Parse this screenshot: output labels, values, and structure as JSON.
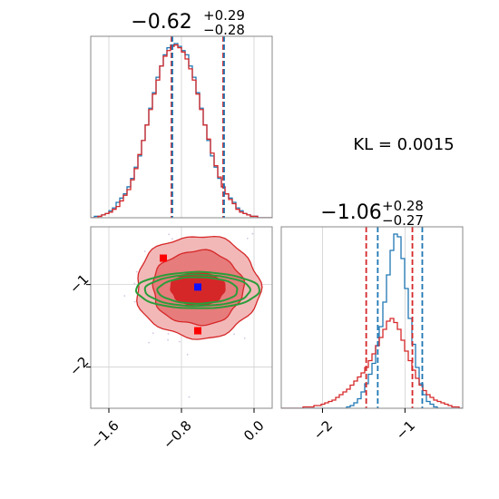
{
  "chart_data": [
    {
      "type": "histogram",
      "panel": "marginal-x",
      "title_center": "−0.62",
      "title_plus": "+0.29",
      "title_minus": "−0.28",
      "xlim": [
        -1.8,
        0.2
      ],
      "bins_start": -1.8,
      "bin_width": 0.04,
      "series": [
        {
          "color": "#1f77b4",
          "counts": [
            0,
            1,
            1,
            2,
            3,
            5,
            7,
            11,
            14,
            17,
            22,
            28,
            36,
            44,
            55,
            66,
            78,
            89,
            100,
            108,
            116,
            121,
            123,
            124,
            122,
            119,
            116,
            108,
            100,
            89,
            78,
            66,
            55,
            44,
            36,
            28,
            22,
            17,
            14,
            11,
            7,
            5,
            3,
            2,
            1,
            1,
            0,
            0,
            0,
            0
          ]
        },
        {
          "color": "#d62728",
          "counts": [
            0,
            0,
            1,
            2,
            3,
            4,
            6,
            8,
            12,
            16,
            20,
            27,
            35,
            45,
            55,
            66,
            77,
            88,
            98,
            108,
            115,
            119,
            122,
            123,
            121,
            118,
            113,
            106,
            98,
            88,
            77,
            66,
            56,
            46,
            37,
            29,
            22,
            17,
            13,
            10,
            6,
            4,
            3,
            2,
            1,
            1,
            0,
            0,
            0,
            0
          ]
        }
      ],
      "quantile_lines": {
        "blue": [
          -0.9,
          -0.33
        ],
        "red": [
          -0.91,
          -0.34
        ]
      }
    },
    {
      "type": "contour",
      "panel": "joint",
      "xlim": [
        -1.8,
        0.2
      ],
      "ylim": [
        -2.5,
        -0.3
      ],
      "x_ticks": [
        "−1.6",
        "−0.8",
        "0.0"
      ],
      "x_tick_values": [
        -1.6,
        -0.8,
        0.0
      ],
      "y_ticks": [
        "−1",
        "−2"
      ],
      "y_tick_values": [
        -1,
        -2
      ],
      "red_contours": [
        {
          "level": 3,
          "cx": -0.62,
          "cy": -1.03,
          "rx": 0.68,
          "ry": 0.62
        },
        {
          "level": 2,
          "cx": -0.62,
          "cy": -1.04,
          "rx": 0.5,
          "ry": 0.45
        },
        {
          "level": 1,
          "cx": -0.62,
          "cy": -1.05,
          "rx": 0.3,
          "ry": 0.2
        }
      ],
      "green_contours": [
        {
          "cx": -0.62,
          "cy": -1.07,
          "rx": 0.68,
          "ry": 0.22
        },
        {
          "cx": -0.62,
          "cy": -1.07,
          "rx": 0.58,
          "ry": 0.19
        },
        {
          "cx": -0.62,
          "cy": -1.07,
          "rx": 0.44,
          "ry": 0.16
        }
      ],
      "markers": {
        "blue": [
          {
            "x": -0.62,
            "y": -1.03
          }
        ],
        "red": [
          {
            "x": -1.0,
            "y": -0.68
          },
          {
            "x": -0.62,
            "y": -1.56
          }
        ]
      }
    },
    {
      "type": "histogram",
      "panel": "marginal-y",
      "title_center": "−1.06",
      "title_plus": "+0.28",
      "title_minus": "−0.27",
      "xlim": [
        -2.5,
        -0.3
      ],
      "x_ticks": [
        "−2",
        "−1"
      ],
      "x_tick_values": [
        -2,
        -1
      ],
      "bins_start": -2.5,
      "bin_width": 0.044,
      "series": [
        {
          "color": "#1f77b4",
          "counts": [
            0,
            0,
            0,
            0,
            0,
            0,
            0,
            0,
            0,
            0,
            0,
            0,
            0,
            0,
            0,
            0,
            0,
            0,
            1,
            2,
            4,
            7,
            12,
            18,
            25,
            33,
            46,
            60,
            78,
            98,
            116,
            128,
            126,
            110,
            88,
            66,
            47,
            30,
            18,
            10,
            5,
            3,
            1,
            0,
            0,
            0,
            0,
            0,
            0,
            0
          ]
        },
        {
          "color": "#d62728",
          "counts": [
            0,
            0,
            0,
            0,
            0,
            0,
            1,
            1,
            1,
            2,
            2,
            3,
            4,
            5,
            6,
            8,
            10,
            12,
            14,
            17,
            20,
            23,
            26,
            30,
            35,
            40,
            46,
            52,
            58,
            64,
            66,
            63,
            58,
            50,
            42,
            35,
            28,
            22,
            17,
            13,
            10,
            8,
            6,
            5,
            4,
            3,
            2,
            1,
            1,
            0
          ]
        }
      ],
      "quantile_lines": {
        "blue": [
          -1.33,
          -0.79
        ],
        "red": [
          -1.47,
          -0.91
        ]
      }
    }
  ],
  "annotation": "KL = 0.0015"
}
